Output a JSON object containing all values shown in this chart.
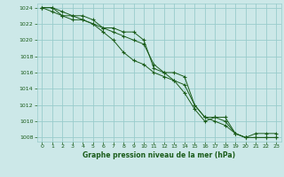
{
  "title": "Graphe pression niveau de la mer (hPa)",
  "bg_color": "#cce8e8",
  "grid_color": "#99cccc",
  "line_color": "#1a5c1a",
  "marker_color": "#1a5c1a",
  "ylim": [
    1007.5,
    1024.5
  ],
  "xlim": [
    -0.5,
    23.5
  ],
  "yticks": [
    1008,
    1010,
    1012,
    1014,
    1016,
    1018,
    1020,
    1022,
    1024
  ],
  "xticks": [
    0,
    1,
    2,
    3,
    4,
    5,
    6,
    7,
    8,
    9,
    10,
    11,
    12,
    13,
    14,
    15,
    16,
    17,
    18,
    19,
    20,
    21,
    22,
    23
  ],
  "series": [
    [
      1024,
      1024,
      1023.5,
      1023,
      1023,
      1022.5,
      1021.5,
      1021,
      1020.5,
      1020,
      1019.5,
      1017,
      1016,
      1016,
      1015.5,
      1012,
      1010.5,
      1010.5,
      1010,
      1008.5,
      1008,
      1008.5,
      1008.5,
      1008.5
    ],
    [
      1024,
      1023.5,
      1023,
      1022.5,
      1022.5,
      1022,
      1021,
      1020,
      1018.5,
      1017.5,
      1017,
      1016,
      1015.5,
      1015,
      1014.5,
      1012,
      1010.5,
      1010,
      1009.5,
      1008.5,
      1008,
      1008,
      1008,
      1008
    ],
    [
      1024,
      1024,
      1023,
      1023,
      1022.5,
      1022,
      1021.5,
      1021.5,
      1021,
      1021,
      1020,
      1016.5,
      1016,
      1015,
      1013.5,
      1011.5,
      1010,
      1010.5,
      1010.5,
      1008.5,
      1008,
      1008,
      1008,
      1008
    ]
  ]
}
